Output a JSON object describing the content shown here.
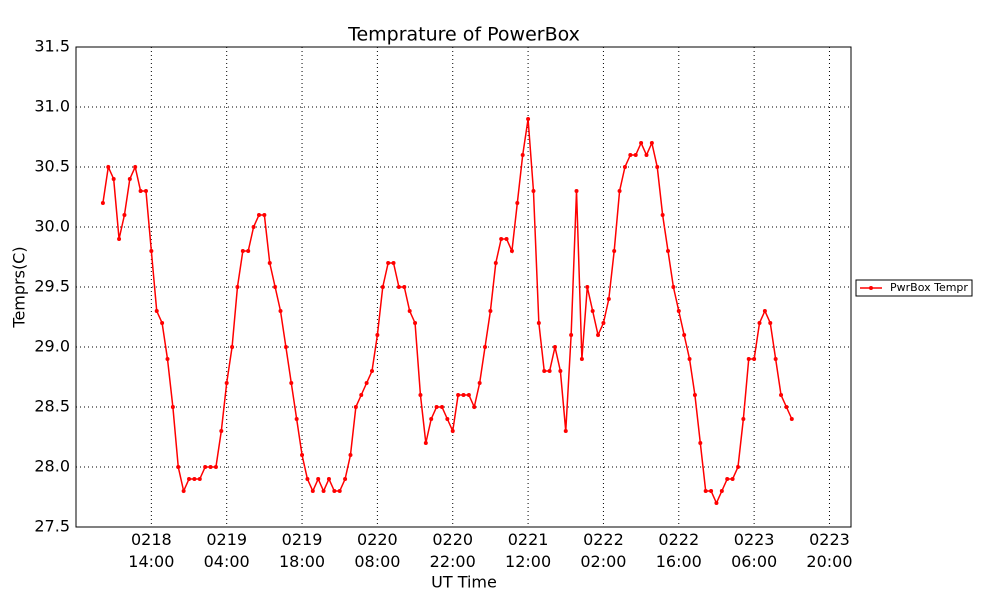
{
  "chart_data": {
    "type": "line",
    "title": "Temprature of PowerBox",
    "xlabel": "UT Time",
    "ylabel": "Temprs(C)",
    "x": [
      "0218 05:00",
      "0218 06:00",
      "0218 07:00",
      "0218 08:00",
      "0218 09:00",
      "0218 10:00",
      "0218 11:00",
      "0218 12:00",
      "0218 13:00",
      "0218 14:00",
      "0218 15:00",
      "0218 16:00",
      "0218 17:00",
      "0218 18:00",
      "0218 19:00",
      "0218 20:00",
      "0218 21:00",
      "0218 22:00",
      "0218 23:00",
      "0219 00:00",
      "0219 01:00",
      "0219 02:00",
      "0219 03:00",
      "0219 04:00",
      "0219 05:00",
      "0219 06:00",
      "0219 07:00",
      "0219 08:00",
      "0219 09:00",
      "0219 10:00",
      "0219 11:00",
      "0219 12:00",
      "0219 13:00",
      "0219 14:00",
      "0219 15:00",
      "0219 16:00",
      "0219 17:00",
      "0219 18:00",
      "0219 19:00",
      "0219 20:00",
      "0219 21:00",
      "0219 22:00",
      "0219 23:00",
      "0220 00:00",
      "0220 01:00",
      "0220 02:00",
      "0220 03:00",
      "0220 04:00",
      "0220 05:00",
      "0220 06:00",
      "0220 07:00",
      "0220 08:00",
      "0220 09:00",
      "0220 10:00",
      "0220 11:00",
      "0220 12:00",
      "0220 13:00",
      "0220 14:00",
      "0220 15:00",
      "0220 16:00",
      "0220 17:00",
      "0220 18:00",
      "0220 19:00",
      "0220 20:00",
      "0220 21:00",
      "0220 22:00",
      "0220 23:00",
      "0221 00:00",
      "0221 01:00",
      "0221 02:00",
      "0221 03:00",
      "0221 04:00",
      "0221 05:00",
      "0221 06:00",
      "0221 07:00",
      "0221 08:00",
      "0221 09:00",
      "0221 10:00",
      "0221 11:00",
      "0221 12:00",
      "0221 13:00",
      "0221 14:00",
      "0221 15:00",
      "0221 16:00",
      "0221 17:00",
      "0221 18:00",
      "0221 19:00",
      "0221 20:00",
      "0221 21:00",
      "0221 22:00",
      "0221 23:00",
      "0222 00:00",
      "0222 01:00",
      "0222 02:00",
      "0222 03:00",
      "0222 04:00",
      "0222 05:00",
      "0222 06:00",
      "0222 07:00",
      "0222 08:00",
      "0222 09:00",
      "0222 10:00",
      "0222 11:00",
      "0222 12:00",
      "0222 13:00",
      "0222 14:00",
      "0222 15:00",
      "0222 16:00",
      "0222 17:00",
      "0222 18:00",
      "0222 19:00",
      "0222 20:00",
      "0222 21:00",
      "0222 22:00",
      "0222 23:00",
      "0223 00:00",
      "0223 01:00",
      "0223 02:00",
      "0223 03:00",
      "0223 04:00",
      "0223 05:00",
      "0223 06:00",
      "0223 07:00",
      "0223 08:00",
      "0223 09:00",
      "0223 10:00",
      "0223 11:00",
      "0223 12:00",
      "0223 13:00"
    ],
    "series": [
      {
        "name": "PwrBox Tempr",
        "color": "#ff0000",
        "values": [
          30.2,
          30.5,
          30.4,
          29.9,
          30.1,
          30.4,
          30.5,
          30.3,
          30.3,
          29.8,
          29.3,
          29.2,
          28.9,
          28.5,
          28.0,
          27.8,
          27.9,
          27.9,
          27.9,
          28.0,
          28.0,
          28.0,
          28.3,
          28.7,
          29.0,
          29.5,
          29.8,
          29.8,
          30.0,
          30.1,
          30.1,
          29.7,
          29.5,
          29.3,
          29.0,
          28.7,
          28.4,
          28.1,
          27.9,
          27.8,
          27.9,
          27.8,
          27.9,
          27.8,
          27.8,
          27.9,
          28.1,
          28.5,
          28.6,
          28.7,
          28.8,
          29.1,
          29.5,
          29.7,
          29.7,
          29.5,
          29.5,
          29.3,
          29.2,
          28.6,
          28.2,
          28.4,
          28.5,
          28.5,
          28.4,
          28.3,
          28.6,
          28.6,
          28.6,
          28.5,
          28.7,
          29.0,
          29.3,
          29.7,
          29.9,
          29.9,
          29.8,
          30.2,
          30.6,
          30.9,
          30.3,
          29.2,
          28.8,
          28.8,
          29.0,
          28.8,
          28.3,
          29.1,
          30.3,
          28.9,
          29.5,
          29.3,
          29.1,
          29.2,
          29.4,
          29.8,
          30.3,
          30.5,
          30.6,
          30.6,
          30.7,
          30.6,
          30.7,
          30.5,
          30.1,
          29.8,
          29.5,
          29.3,
          29.1,
          28.9,
          28.6,
          28.2,
          27.8,
          27.8,
          27.7,
          27.8,
          27.9,
          27.9,
          28.0,
          28.4,
          28.9,
          28.9,
          29.2,
          29.3,
          29.2,
          28.9,
          28.6,
          28.5,
          28.4
        ]
      }
    ],
    "xlim": [
      "0218 00:00",
      "0224 00:00"
    ],
    "xticks": [
      "0218 14:00",
      "0219 04:00",
      "0219 18:00",
      "0220 08:00",
      "0220 22:00",
      "0221 12:00",
      "0222 02:00",
      "0222 16:00",
      "0223 06:00",
      "0223 20:00"
    ],
    "ylim": [
      27.5,
      31.5
    ],
    "yticks": [
      27.5,
      {
        "value": 28,
        "label": "28.0"
      },
      28.5,
      {
        "value": 29,
        "label": "29.0"
      },
      29.5,
      {
        "value": 30,
        "label": "30.0"
      },
      30.5,
      {
        "value": 31,
        "label": "31.0"
      },
      31.5
    ],
    "grid": true,
    "legend": "outside right"
  }
}
